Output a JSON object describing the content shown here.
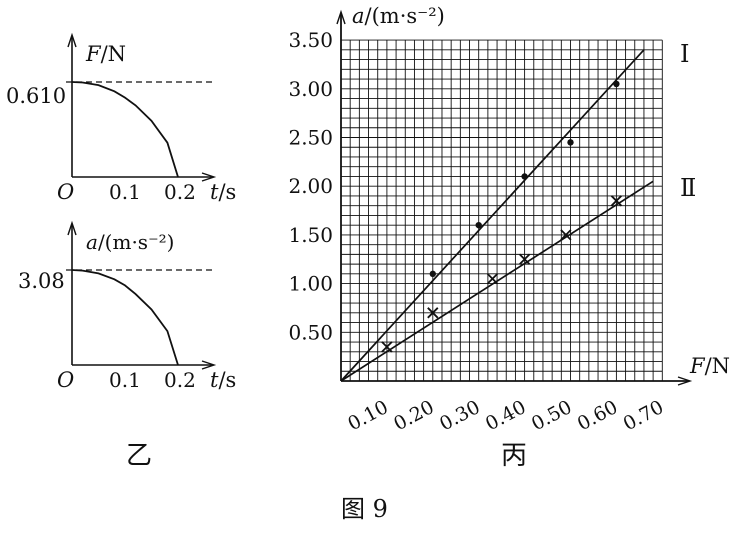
{
  "figure_caption": "图 9",
  "panel_yi": {
    "label": "乙",
    "top_graph": {
      "y_axis": {
        "symbol": "F",
        "unit": "/N"
      },
      "x_axis": {
        "symbol": "t",
        "unit": "/s"
      },
      "origin": "O",
      "x_ticks": [
        "0.1",
        "0.2"
      ],
      "y_marker": "0.610"
    },
    "bottom_graph": {
      "y_axis": {
        "symbol": "a",
        "unit": "/(m·s⁻²)"
      },
      "x_axis": {
        "symbol": "t",
        "unit": "/s"
      },
      "origin": "O",
      "x_ticks": [
        "0.1",
        "0.2"
      ],
      "y_marker": "3.08"
    }
  },
  "panel_bing": {
    "label": "丙",
    "x_axis_symbol": "F",
    "x_axis_unit": "/N",
    "y_axis_symbol": "a",
    "y_axis_unit": "/(m·s⁻²)"
  },
  "chart_data": [
    {
      "type": "line",
      "xlabel": "t/s",
      "ylabel": "F/N",
      "x_ticks": [
        0.1,
        0.2
      ],
      "xlim": [
        0,
        0.2
      ],
      "series": [
        {
          "x": [
            0,
            0.02,
            0.05,
            0.08,
            0.1,
            0.12,
            0.15,
            0.18,
            0.2
          ],
          "values": [
            0.61,
            0.607,
            0.59,
            0.55,
            0.51,
            0.46,
            0.36,
            0.22,
            0
          ]
        }
      ],
      "reference_line": {
        "y": 0.61,
        "style": "dashed"
      }
    },
    {
      "type": "line",
      "xlabel": "t/s",
      "ylabel": "a/(m·s⁻²)",
      "x_ticks": [
        0.1,
        0.2
      ],
      "xlim": [
        0,
        0.2
      ],
      "series": [
        {
          "x": [
            0,
            0.02,
            0.05,
            0.08,
            0.1,
            0.12,
            0.15,
            0.18,
            0.2
          ],
          "values": [
            3.08,
            3.06,
            2.97,
            2.78,
            2.58,
            2.3,
            1.8,
            1.1,
            0
          ]
        }
      ],
      "reference_line": {
        "y": 3.08,
        "style": "dashed"
      }
    },
    {
      "type": "scatter",
      "xlabel": "F/N",
      "ylabel": "a/(m·s⁻²)",
      "xlim": [
        0,
        0.7
      ],
      "ylim": [
        0,
        3.5
      ],
      "x_ticks": [
        0.1,
        0.2,
        0.3,
        0.4,
        0.5,
        0.6,
        0.7
      ],
      "x_tick_labels": [
        "0.10",
        "0.20",
        "0.30",
        "0.40",
        "0.50",
        "0.60",
        "0.70"
      ],
      "y_ticks": [
        0.5,
        1.0,
        1.5,
        2.0,
        2.5,
        3.0,
        3.5
      ],
      "y_tick_labels": [
        "0.50",
        "1.00",
        "1.50",
        "2.00",
        "2.50",
        "3.00",
        "3.50"
      ],
      "grid": true,
      "series": [
        {
          "name": "Ⅰ",
          "marker": "dot",
          "x": [
            0.2,
            0.3,
            0.4,
            0.5,
            0.6
          ],
          "values": [
            1.1,
            1.6,
            2.1,
            2.45,
            3.05
          ],
          "fit_line": {
            "from": [
              0,
              0
            ],
            "to": [
              0.66,
              3.4
            ]
          }
        },
        {
          "name": "Ⅱ",
          "marker": "x",
          "x": [
            0.1,
            0.2,
            0.33,
            0.4,
            0.49,
            0.6
          ],
          "values": [
            0.35,
            0.7,
            1.05,
            1.25,
            1.5,
            1.85
          ],
          "fit_line": {
            "from": [
              0,
              0
            ],
            "to": [
              0.68,
              2.05
            ]
          }
        }
      ]
    }
  ]
}
